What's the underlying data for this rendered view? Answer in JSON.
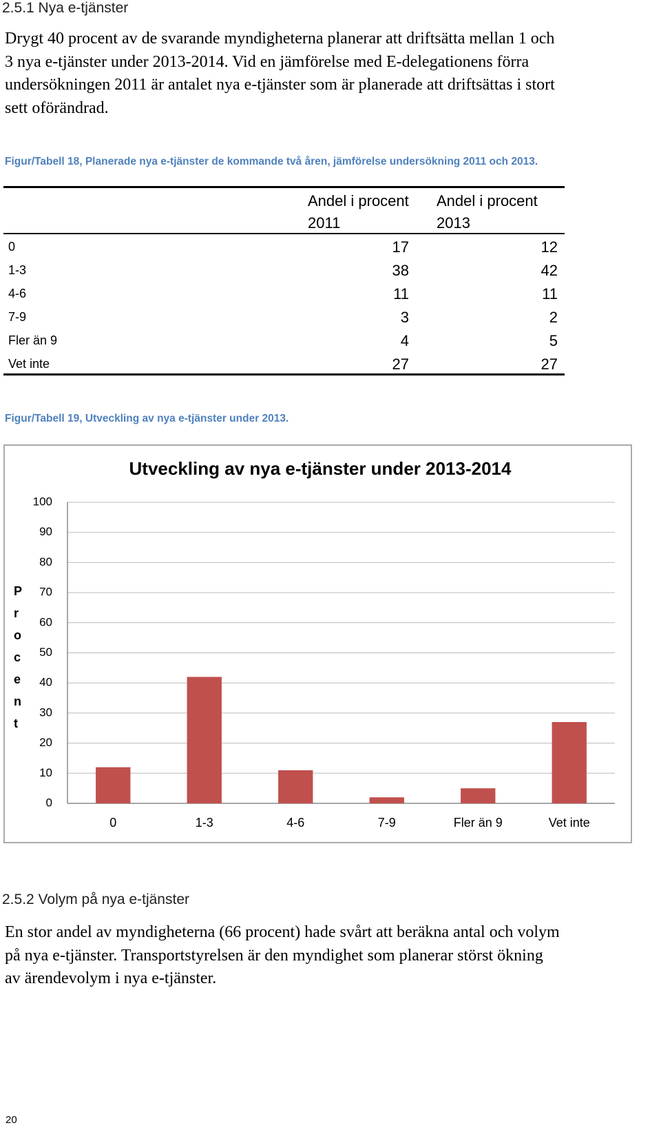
{
  "section1": {
    "heading": "2.5.1 Nya e-tjänster",
    "paragraph": [
      "Drygt 40 procent av de svarande myndigheterna planerar att driftsätta mellan 1 och",
      "3 nya e-tjänster under 2013-2014. Vid en jämförelse med E-delegationens förra",
      "undersökningen 2011 är antalet nya e-tjänster som är planerade att driftsättas i stort",
      "sett oförändrad."
    ]
  },
  "table": {
    "caption": "Figur/Tabell 18, Planerade nya e-tjänster de kommande två åren, jämförelse undersökning 2011 och 2013.",
    "header": [
      "Andel i procent 2011",
      "Andel i procent 2013"
    ],
    "rows": [
      [
        "0",
        17,
        12
      ],
      [
        "1-3",
        38,
        42
      ],
      [
        "4-6",
        11,
        11
      ],
      [
        "7-9",
        3,
        2
      ],
      [
        "Fler än 9",
        4,
        5
      ],
      [
        "Vet inte",
        27,
        27
      ]
    ]
  },
  "chart_caption": "Figur/Tabell 19, Utveckling av nya e-tjänster under 2013.",
  "chart_data": {
    "type": "bar",
    "title": "Utveckling av nya e-tjänster under 2013-2014",
    "y_label": "Procent",
    "categories": [
      "0",
      "1-3",
      "4-6",
      "7-9",
      "Fler än 9",
      "Vet inte"
    ],
    "values": [
      12,
      42,
      11,
      2,
      5,
      27
    ],
    "color": "#c0504d",
    "ylim": [
      0,
      100
    ],
    "yticks": [
      0,
      10,
      20,
      30,
      40,
      50,
      60,
      70,
      80,
      90,
      100
    ],
    "grid": true
  },
  "section2": {
    "heading": "2.5.2 Volym på nya e-tjänster",
    "paragraph": [
      "En stor andel av myndigheterna (66 procent) hade svårt att beräkna antal och volym",
      "på nya e-tjänster. Transportstyrelsen är den myndighet som planerar störst ökning",
      "av ärendevolym i nya e-tjänster."
    ]
  },
  "page_number": "20"
}
